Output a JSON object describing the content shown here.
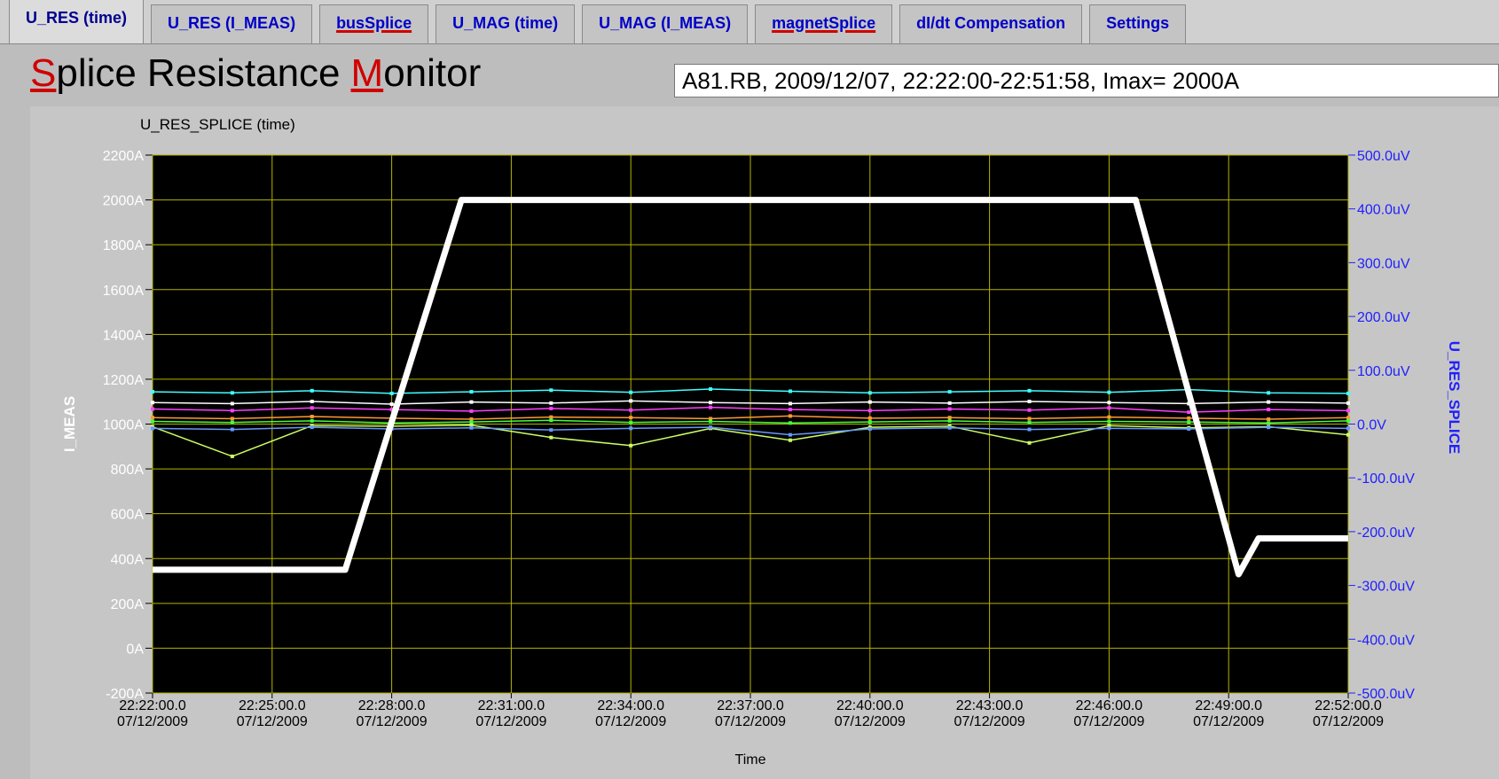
{
  "tabs": [
    "U_RES (time)",
    "U_RES (I_MEAS)",
    "busSplice",
    "U_MAG (time)",
    "U_MAG (I_MEAS)",
    "magnetSplice",
    "dI/dt Compensation",
    "Settings"
  ],
  "title_words": [
    "Splice",
    "Resistance",
    "Monitor"
  ],
  "info": "A81.RB, 2009/12/07, 22:22:00-22:51:58, Imax= 2000A",
  "chart_data": {
    "type": "line",
    "title": "U_RES_SPLICE (time)",
    "xlabel": "Time",
    "ylabel": "I_MEAS",
    "y2label": "U_RES_SPLICE",
    "grid": true,
    "xlim": [
      "22:22:00",
      "22:52:00"
    ],
    "xticks": [
      {
        "value": "22:22:00",
        "label": "22:22:00.0\n07/12/2009"
      },
      {
        "value": "22:25:00",
        "label": "22:25:00.0\n07/12/2009"
      },
      {
        "value": "22:28:00",
        "label": "22:28:00.0\n07/12/2009"
      },
      {
        "value": "22:31:00",
        "label": "22:31:00.0\n07/12/2009"
      },
      {
        "value": "22:34:00",
        "label": "22:34:00.0\n07/12/2009"
      },
      {
        "value": "22:37:00",
        "label": "22:37:00.0\n07/12/2009"
      },
      {
        "value": "22:40:00",
        "label": "22:40:00.0\n07/12/2009"
      },
      {
        "value": "22:43:00",
        "label": "22:43:00.0\n07/12/2009"
      },
      {
        "value": "22:46:00",
        "label": "22:46:00.0\n07/12/2009"
      },
      {
        "value": "22:49:00",
        "label": "22:49:00.0\n07/12/2009"
      },
      {
        "value": "22:52:00",
        "label": "22:52:00.0\n07/12/2009"
      }
    ],
    "ylim": [
      -200,
      2200
    ],
    "yticks": [
      {
        "value": 2200,
        "label": "2200A"
      },
      {
        "value": 2000,
        "label": "2000A"
      },
      {
        "value": 1800,
        "label": "1800A"
      },
      {
        "value": 1600,
        "label": "1600A"
      },
      {
        "value": 1400,
        "label": "1400A"
      },
      {
        "value": 1200,
        "label": "1200A"
      },
      {
        "value": 1000,
        "label": "1000A"
      },
      {
        "value": 800,
        "label": "800A"
      },
      {
        "value": 600,
        "label": "600A"
      },
      {
        "value": 400,
        "label": "400A"
      },
      {
        "value": 200,
        "label": "200A"
      },
      {
        "value": 0,
        "label": "0A"
      },
      {
        "value": -200,
        "label": "-200A"
      }
    ],
    "y2lim": [
      -500,
      500
    ],
    "y2ticks": [
      {
        "value": 500,
        "label": "500.0uV"
      },
      {
        "value": 400,
        "label": "400.0uV"
      },
      {
        "value": 300,
        "label": "300.0uV"
      },
      {
        "value": 200,
        "label": "200.0uV"
      },
      {
        "value": 100,
        "label": "100.0uV"
      },
      {
        "value": 0,
        "label": "0.0V"
      },
      {
        "value": -100,
        "label": "-100.0uV"
      },
      {
        "value": -200,
        "label": "-200.0uV"
      },
      {
        "value": -300,
        "label": "-300.0uV"
      },
      {
        "value": -400,
        "label": "-400.0uV"
      },
      {
        "value": -500,
        "label": "-500.0uV"
      }
    ],
    "x": [
      "22:22:00",
      "22:24:00",
      "22:26:00",
      "22:28:00",
      "22:30:00",
      "22:32:00",
      "22:34:00",
      "22:36:00",
      "22:38:00",
      "22:40:00",
      "22:42:00",
      "22:44:00",
      "22:46:00",
      "22:48:00",
      "22:50:00",
      "22:52:00"
    ],
    "series": [
      {
        "color": "#40ffff",
        "axis": "y2",
        "values": [
          60,
          58,
          62,
          57,
          60,
          63,
          59,
          65,
          61,
          58,
          60,
          62,
          59,
          64,
          58,
          57
        ]
      },
      {
        "color": "#ff40ff",
        "axis": "y2",
        "values": [
          28,
          25,
          30,
          27,
          24,
          29,
          26,
          31,
          27,
          25,
          28,
          26,
          30,
          22,
          27,
          25
        ]
      },
      {
        "color": "#ffffff",
        "axis": "y2",
        "values": [
          40,
          38,
          42,
          37,
          41,
          39,
          43,
          40,
          38,
          41,
          39,
          42,
          40,
          38,
          41,
          39
        ]
      },
      {
        "color": "#ff9933",
        "axis": "y2",
        "values": [
          12,
          10,
          14,
          11,
          9,
          13,
          12,
          10,
          15,
          11,
          12,
          10,
          13,
          11,
          9,
          12
        ]
      },
      {
        "color": "#40ff40",
        "axis": "y2",
        "values": [
          5,
          3,
          6,
          2,
          4,
          7,
          3,
          5,
          2,
          4,
          6,
          3,
          5,
          4,
          2,
          6
        ]
      },
      {
        "color": "#ccff66",
        "axis": "y2",
        "values": [
          -5,
          -60,
          -3,
          -4,
          -2,
          -25,
          -40,
          -8,
          -30,
          -6,
          -4,
          -35,
          -3,
          -7,
          -5,
          -20
        ]
      },
      {
        "color": "#6699ff",
        "axis": "y2",
        "values": [
          -8,
          -10,
          -6,
          -9,
          -7,
          -11,
          -8,
          -6,
          -20,
          -9,
          -7,
          -10,
          -8,
          -9,
          -6,
          -8
        ]
      },
      {
        "color": "#ffffff",
        "axis": "y",
        "x": [
          "22:22:00",
          "22:26:50",
          "22:29:45",
          "22:46:40",
          "22:49:15",
          "22:49:45",
          "22:52:00"
        ],
        "values": [
          350,
          350,
          2000,
          2000,
          330,
          490,
          490
        ]
      }
    ]
  }
}
